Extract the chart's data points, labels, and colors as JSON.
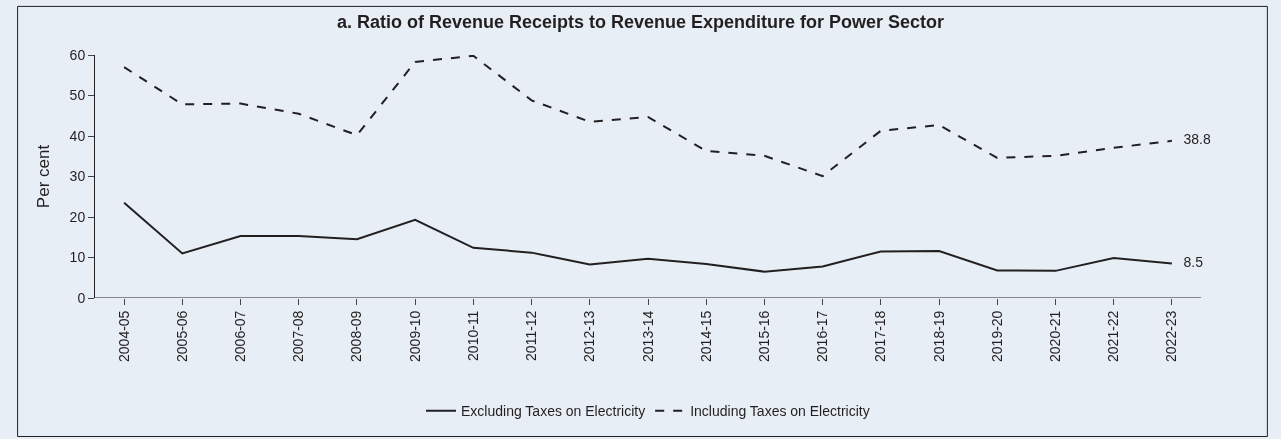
{
  "chart_data": {
    "type": "line",
    "title": "a. Ratio of Revenue Receipts to Revenue Expenditure for Power Sector",
    "ylabel": "Per cent",
    "categories": [
      "2004-05",
      "2005-06",
      "2006-07",
      "2007-08",
      "2008-09",
      "2009-10",
      "2010-11",
      "2011-12",
      "2012-13",
      "2013-14",
      "2014-15",
      "2015-16",
      "2016-17",
      "2017-18",
      "2018-19",
      "2019-20",
      "2020-21",
      "2021-22",
      "2022-23"
    ],
    "series": [
      {
        "name": "Excluding Taxes on Electricity",
        "color": "#231f20",
        "line_style": "solid",
        "values": [
          23.5,
          11,
          15.3,
          15.3,
          14.5,
          19.3,
          12.4,
          11.2,
          8.3,
          9.7,
          8.4,
          6.5,
          7.8,
          11.5,
          11.6,
          6.8,
          6.7,
          9.9,
          8.5
        ],
        "value_labels": [
          null,
          null,
          null,
          null,
          null,
          null,
          null,
          null,
          null,
          null,
          null,
          null,
          null,
          null,
          null,
          null,
          null,
          null,
          "8.5"
        ]
      },
      {
        "name": "Including Taxes on Electricity",
        "color": "#231f20",
        "line_style": "dashed",
        "values": [
          57,
          47.8,
          48,
          45.5,
          40.2,
          58.3,
          59.8,
          48.8,
          43.5,
          44.7,
          36.3,
          35.1,
          30.1,
          41.3,
          42.7,
          34.6,
          35.1,
          37.1,
          38.8
        ],
        "value_labels": [
          null,
          null,
          null,
          null,
          null,
          null,
          null,
          null,
          null,
          null,
          null,
          null,
          null,
          null,
          null,
          null,
          null,
          null,
          "38.8"
        ]
      }
    ],
    "ylim": [
      0,
      60
    ],
    "yticks": [
      0,
      10,
      20,
      30,
      40,
      50,
      60
    ],
    "grid": false,
    "legend": "bottom",
    "marker": "none"
  }
}
